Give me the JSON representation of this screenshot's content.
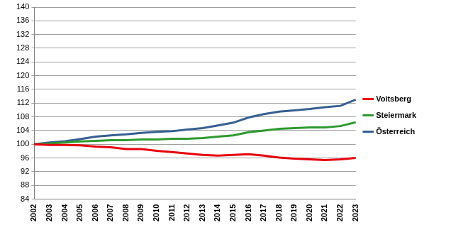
{
  "chart_data": {
    "type": "line",
    "categories": [
      "2002",
      "2003",
      "2004",
      "2005",
      "2006",
      "2007",
      "2008",
      "2009",
      "2010",
      "2011",
      "2012",
      "2013",
      "2014",
      "2015",
      "2016",
      "2017",
      "2018",
      "2019",
      "2020",
      "2021",
      "2022",
      "2023"
    ],
    "series": [
      {
        "name": "Voitsberg",
        "color": "#e8000b",
        "values": [
          100,
          99.8,
          99.8,
          99.7,
          99.3,
          99.1,
          98.6,
          98.6,
          98.1,
          97.7,
          97.3,
          96.9,
          96.7,
          96.9,
          97.1,
          96.7,
          96.1,
          95.8,
          95.6,
          95.4,
          95.6,
          96.0
        ]
      },
      {
        "name": "Steiermark",
        "color": "#2e9a2e",
        "values": [
          100,
          100.2,
          100.5,
          100.8,
          101.0,
          101.2,
          101.2,
          101.4,
          101.4,
          101.6,
          101.6,
          101.8,
          102.2,
          102.6,
          103.5,
          104.0,
          104.5,
          104.7,
          104.9,
          104.9,
          105.3,
          106.4
        ]
      },
      {
        "name": "Österreich",
        "color": "#365f91",
        "values": [
          100,
          100.5,
          100.9,
          101.5,
          102.2,
          102.6,
          102.9,
          103.3,
          103.6,
          103.8,
          104.3,
          104.7,
          105.5,
          106.3,
          107.8,
          108.8,
          109.5,
          109.9,
          110.3,
          110.8,
          111.2,
          113.0
        ]
      }
    ],
    "ylim": [
      84,
      140
    ],
    "yticks": [
      84,
      88,
      92,
      96,
      100,
      104,
      108,
      112,
      116,
      120,
      124,
      128,
      132,
      136,
      140
    ],
    "grid": true,
    "legend": "right"
  }
}
